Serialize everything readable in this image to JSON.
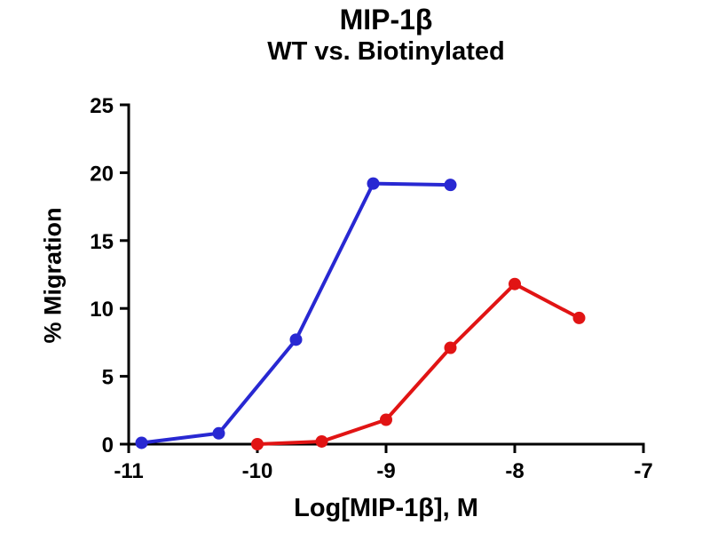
{
  "chart_data": {
    "type": "line",
    "title": "MIP-1β",
    "subtitle": "WT vs. Biotinylated",
    "xlabel": "Log[MIP-1β], M",
    "ylabel": "% Migration",
    "xlim": [
      -11,
      -7
    ],
    "ylim": [
      0,
      25
    ],
    "x_ticks": [
      -11,
      -10,
      -9,
      -8,
      -7
    ],
    "y_ticks": [
      0,
      5,
      10,
      15,
      20,
      25
    ],
    "grid": false,
    "legend_position": "none",
    "axis_color": "#000000",
    "series": [
      {
        "name": "WT",
        "color": "#2828d2",
        "x": [
          -10.9,
          -10.3,
          -9.7,
          -9.1,
          -8.5
        ],
        "y": [
          0.1,
          0.8,
          7.7,
          19.2,
          19.1
        ]
      },
      {
        "name": "Biotinylated",
        "color": "#e11414",
        "x": [
          -10.0,
          -9.5,
          -9.0,
          -8.5,
          -8.0,
          -7.5
        ],
        "y": [
          0.0,
          0.2,
          1.8,
          7.1,
          11.8,
          9.3
        ]
      }
    ]
  }
}
